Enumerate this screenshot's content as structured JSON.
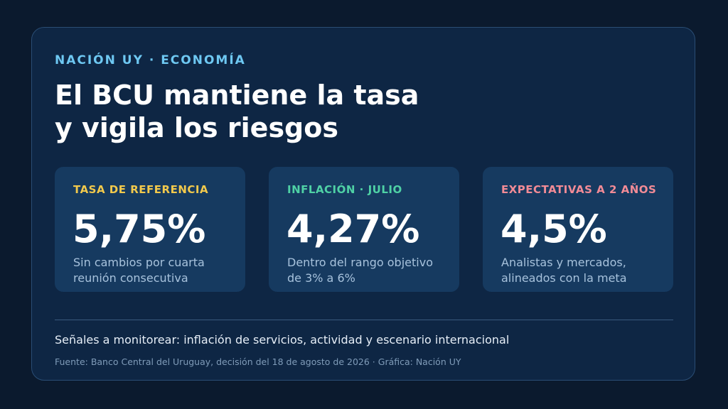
{
  "kicker": "NACIÓN UY · ECONOMÍA",
  "headline": {
    "line1": "El BCU mantiene la tasa",
    "line2": "y vigila los riesgos"
  },
  "stats": [
    {
      "label": "TASA DE REFERENCIA",
      "value": "5,75%",
      "desc_line1": "Sin cambios por cuarta",
      "desc_line2": "reunión consecutiva",
      "color": "#f2c94c"
    },
    {
      "label": "INFLACIÓN · JULIO",
      "value": "4,27%",
      "desc_line1": "Dentro del rango objetivo",
      "desc_line2": "de 3% a 6%",
      "color": "#4fd1a5"
    },
    {
      "label": "EXPECTATIVAS A 2 AÑOS",
      "value": "4,5%",
      "desc_line1": "Analistas y mercados,",
      "desc_line2": "alineados con la meta",
      "color": "#f28b96"
    }
  ],
  "footnote": "Señales a monitorear: inflación de servicios, actividad y escenario internacional",
  "source": "Fuente: Banco Central del Uruguay, decisión del 18 de agosto de 2026 · Gráfica: Nación UY"
}
